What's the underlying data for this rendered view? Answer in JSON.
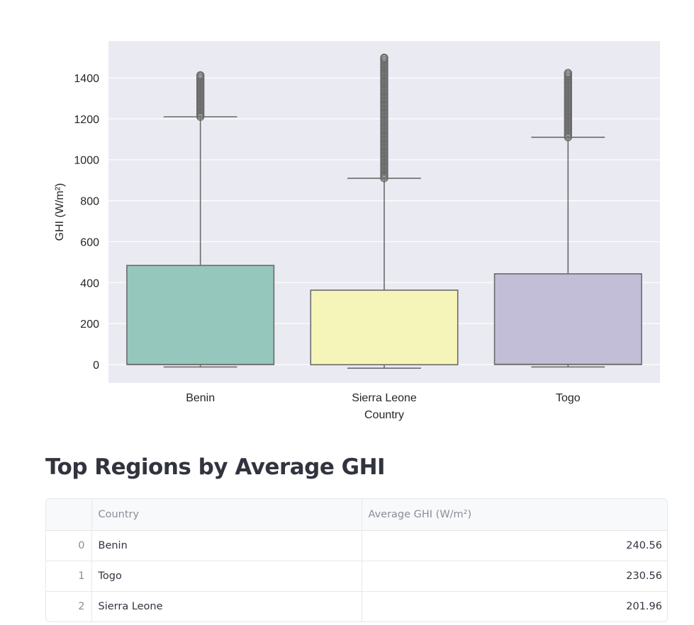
{
  "chart_data": {
    "type": "box",
    "categories": [
      "Benin",
      "Sierra Leone",
      "Togo"
    ],
    "xlabel": "Country",
    "ylabel": "GHI (W/m²)",
    "ylim": [
      -90,
      1580
    ],
    "yticks": [
      0,
      200,
      400,
      600,
      800,
      1000,
      1200,
      1400
    ],
    "grid": true,
    "boxes": [
      {
        "category": "Benin",
        "color": "#96c7bc",
        "min": -12,
        "q1": 0,
        "median": 0,
        "q3": 484,
        "max": 1210,
        "outlier_low": 1210,
        "outlier_high": 1413
      },
      {
        "category": "Sierra Leone",
        "color": "#f6f5b9",
        "min": -18,
        "q1": -1,
        "median": -1,
        "q3": 363,
        "max": 910,
        "outlier_low": 910,
        "outlier_high": 1499
      },
      {
        "category": "Togo",
        "color": "#c2bed7",
        "min": -12,
        "q1": 0,
        "median": 1,
        "q3": 443,
        "max": 1110,
        "outlier_low": 1110,
        "outlier_high": 1424
      }
    ]
  },
  "section_title": "Top Regions by Average GHI",
  "table": {
    "columns": [
      "",
      "Country",
      "Average GHI (W/m²)"
    ],
    "rows": [
      {
        "index": "0",
        "country": "Benin",
        "value": "240.56"
      },
      {
        "index": "1",
        "country": "Togo",
        "value": "230.56"
      },
      {
        "index": "2",
        "country": "Sierra Leone",
        "value": "201.96"
      }
    ]
  }
}
